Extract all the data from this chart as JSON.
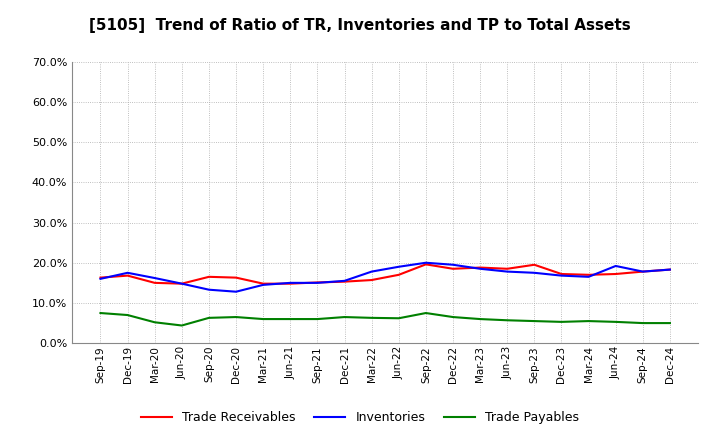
{
  "title": "[5105]  Trend of Ratio of TR, Inventories and TP to Total Assets",
  "x_labels": [
    "Sep-19",
    "Dec-19",
    "Mar-20",
    "Jun-20",
    "Sep-20",
    "Dec-20",
    "Mar-21",
    "Jun-21",
    "Sep-21",
    "Dec-21",
    "Mar-22",
    "Jun-22",
    "Sep-22",
    "Dec-22",
    "Mar-23",
    "Jun-23",
    "Sep-23",
    "Dec-23",
    "Mar-24",
    "Jun-24",
    "Sep-24",
    "Dec-24"
  ],
  "trade_receivables": [
    0.163,
    0.168,
    0.15,
    0.148,
    0.165,
    0.163,
    0.148,
    0.148,
    0.151,
    0.153,
    0.157,
    0.17,
    0.196,
    0.185,
    0.188,
    0.185,
    0.195,
    0.172,
    0.17,
    0.172,
    0.178,
    0.183
  ],
  "inventories": [
    0.16,
    0.175,
    0.162,
    0.148,
    0.133,
    0.128,
    0.145,
    0.15,
    0.15,
    0.155,
    0.178,
    0.19,
    0.2,
    0.195,
    0.185,
    0.178,
    0.175,
    0.168,
    0.165,
    0.192,
    0.178,
    0.183
  ],
  "trade_payables": [
    0.075,
    0.07,
    0.052,
    0.044,
    0.063,
    0.065,
    0.06,
    0.06,
    0.06,
    0.065,
    0.063,
    0.062,
    0.075,
    0.065,
    0.06,
    0.057,
    0.055,
    0.053,
    0.055,
    0.053,
    0.05,
    0.05
  ],
  "line_colors": {
    "trade_receivables": "#FF0000",
    "inventories": "#0000FF",
    "trade_payables": "#008000"
  },
  "legend_labels": {
    "trade_receivables": "Trade Receivables",
    "inventories": "Inventories",
    "trade_payables": "Trade Payables"
  },
  "ylim": [
    0.0,
    0.7
  ],
  "yticks": [
    0.0,
    0.1,
    0.2,
    0.3,
    0.4,
    0.5,
    0.6,
    0.7
  ],
  "background_color": "#FFFFFF",
  "grid_color": "#AAAAAA",
  "title_fontsize": 11,
  "legend_fontsize": 9,
  "tick_fontsize": 8
}
